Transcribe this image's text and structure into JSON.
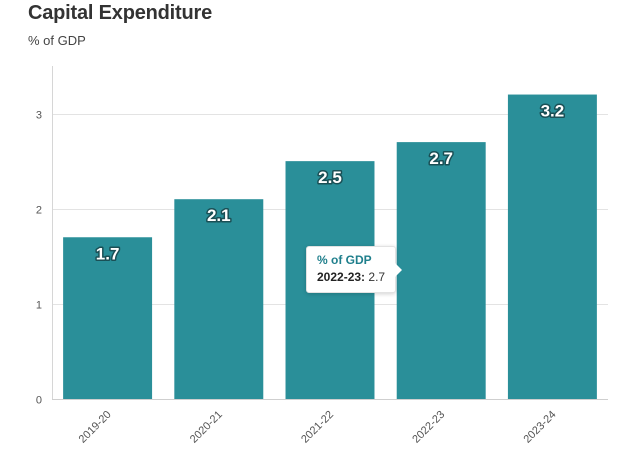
{
  "chart_data": {
    "type": "bar",
    "title": "Capital Expenditure",
    "subtitle": "% of GDP",
    "categories": [
      "2019-20",
      "2020-21",
      "2021-22",
      "2022-23",
      "2023-24"
    ],
    "values": [
      1.7,
      2.1,
      2.5,
      2.7,
      3.2
    ],
    "data_labels": [
      "1.7",
      "2.1",
      "2.5",
      "2.7",
      "3.2"
    ],
    "ylim": [
      0,
      3.5
    ],
    "yticks": [
      "0",
      "1",
      "2",
      "3"
    ],
    "grid": true,
    "bar_color": "#2a8f99",
    "label_color": "#ffffff",
    "label_outline_color": "#1a4f55"
  },
  "tooltip": {
    "series": "% of GDP",
    "category": "2022-23:",
    "value": "2.7"
  }
}
